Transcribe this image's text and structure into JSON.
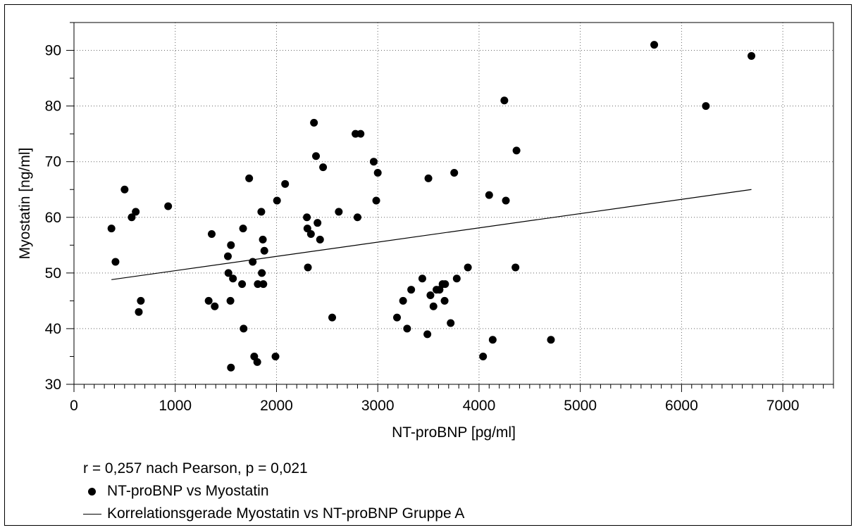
{
  "chart_data": {
    "type": "scatter",
    "xlabel": "NT-proBNP [pg/ml]",
    "ylabel": "Myostatin [ng/ml]",
    "xlim": [
      0,
      7500
    ],
    "ylim": [
      30,
      95
    ],
    "x_ticks": [
      0,
      1000,
      2000,
      3000,
      4000,
      5000,
      6000,
      7000
    ],
    "y_ticks": [
      30,
      40,
      50,
      60,
      70,
      80,
      90
    ],
    "x_tick_labels": [
      "0",
      "1000",
      "2000",
      "3000",
      "4000",
      "5000",
      "6000",
      "7000"
    ],
    "y_tick_labels": [
      "30",
      "40",
      "50",
      "60",
      "70",
      "80",
      "90"
    ],
    "x_minor_step": 100,
    "y_minor_step": 5,
    "grid": "dotted",
    "annotation": "r = 0,257 nach Pearson, p = 0,021",
    "series": [
      {
        "name": "NT-proBNP vs Myostatin",
        "kind": "scatter",
        "color": "#000000",
        "points": [
          [
            370,
            58
          ],
          [
            410,
            52
          ],
          [
            500,
            65
          ],
          [
            570,
            60
          ],
          [
            610,
            61
          ],
          [
            640,
            43
          ],
          [
            660,
            45
          ],
          [
            930,
            62
          ],
          [
            1330,
            45
          ],
          [
            1360,
            57
          ],
          [
            1390,
            44
          ],
          [
            1520,
            53
          ],
          [
            1525,
            50
          ],
          [
            1545,
            45
          ],
          [
            1550,
            55
          ],
          [
            1550,
            33
          ],
          [
            1570,
            49
          ],
          [
            1660,
            48
          ],
          [
            1670,
            58
          ],
          [
            1675,
            40
          ],
          [
            1730,
            67
          ],
          [
            1765,
            52
          ],
          [
            1780,
            35
          ],
          [
            1810,
            34
          ],
          [
            1815,
            48
          ],
          [
            1850,
            61
          ],
          [
            1855,
            50
          ],
          [
            1865,
            56
          ],
          [
            1870,
            48
          ],
          [
            1880,
            54
          ],
          [
            1990,
            35
          ],
          [
            2005,
            63
          ],
          [
            2085,
            66
          ],
          [
            2300,
            60
          ],
          [
            2305,
            58
          ],
          [
            2310,
            51
          ],
          [
            2340,
            57
          ],
          [
            2370,
            77
          ],
          [
            2390,
            71
          ],
          [
            2405,
            59
          ],
          [
            2430,
            56
          ],
          [
            2460,
            69
          ],
          [
            2550,
            42
          ],
          [
            2615,
            61
          ],
          [
            2780,
            75
          ],
          [
            2800,
            60
          ],
          [
            2830,
            75
          ],
          [
            2960,
            70
          ],
          [
            2985,
            63
          ],
          [
            3000,
            68
          ],
          [
            3190,
            42
          ],
          [
            3250,
            45
          ],
          [
            3290,
            40
          ],
          [
            3330,
            47
          ],
          [
            3440,
            49
          ],
          [
            3490,
            39
          ],
          [
            3500,
            67
          ],
          [
            3520,
            46
          ],
          [
            3550,
            44
          ],
          [
            3580,
            47
          ],
          [
            3610,
            47
          ],
          [
            3640,
            48
          ],
          [
            3660,
            45
          ],
          [
            3665,
            48
          ],
          [
            3720,
            41
          ],
          [
            3755,
            68
          ],
          [
            3780,
            49
          ],
          [
            3890,
            51
          ],
          [
            4040,
            35
          ],
          [
            4100,
            64
          ],
          [
            4135,
            38
          ],
          [
            4250,
            81
          ],
          [
            4265,
            63
          ],
          [
            4360,
            51
          ],
          [
            4370,
            72
          ],
          [
            4710,
            38
          ],
          [
            5730,
            91
          ],
          [
            6240,
            80
          ],
          [
            6690,
            89
          ]
        ]
      },
      {
        "name": "Korrelationsgerade Myostatin vs NT-proBNP Gruppe A",
        "kind": "line",
        "color": "#000000",
        "points": [
          [
            370,
            48.8
          ],
          [
            6690,
            65
          ]
        ]
      }
    ]
  }
}
